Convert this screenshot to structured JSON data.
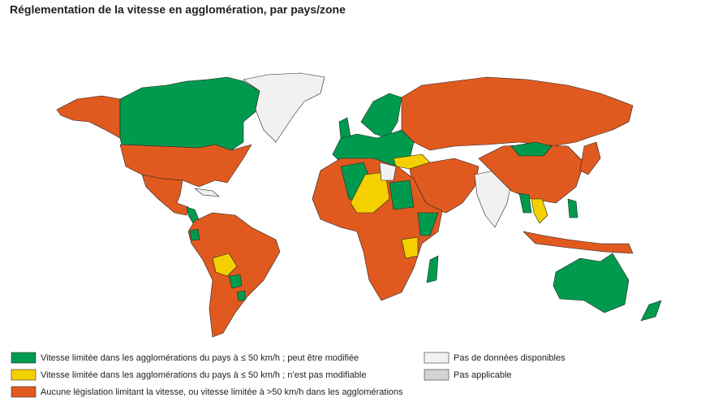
{
  "title": "Réglementation de la vitesse en agglomération, par pays/zone",
  "legend": [
    {
      "label": "Vitesse limitée dans les agglomérations du pays à ≤ 50 km/h ; peut être modifiée",
      "color": "#009a4e"
    },
    {
      "label": "Vitesse limitée dans les agglomérations du pays à ≤ 50 km/h ; n’est pas modifiable",
      "color": "#f5d000"
    },
    {
      "label": "Aucune législation limitant la vitesse, ou vitesse limitée à >50 km/h dans les agglomérations",
      "color": "#e05a20"
    },
    {
      "label": "Pas de données disponibles",
      "color": "#f1f1f1"
    },
    {
      "label": "Pas applicable",
      "color": "#d4d4d4"
    }
  ]
}
